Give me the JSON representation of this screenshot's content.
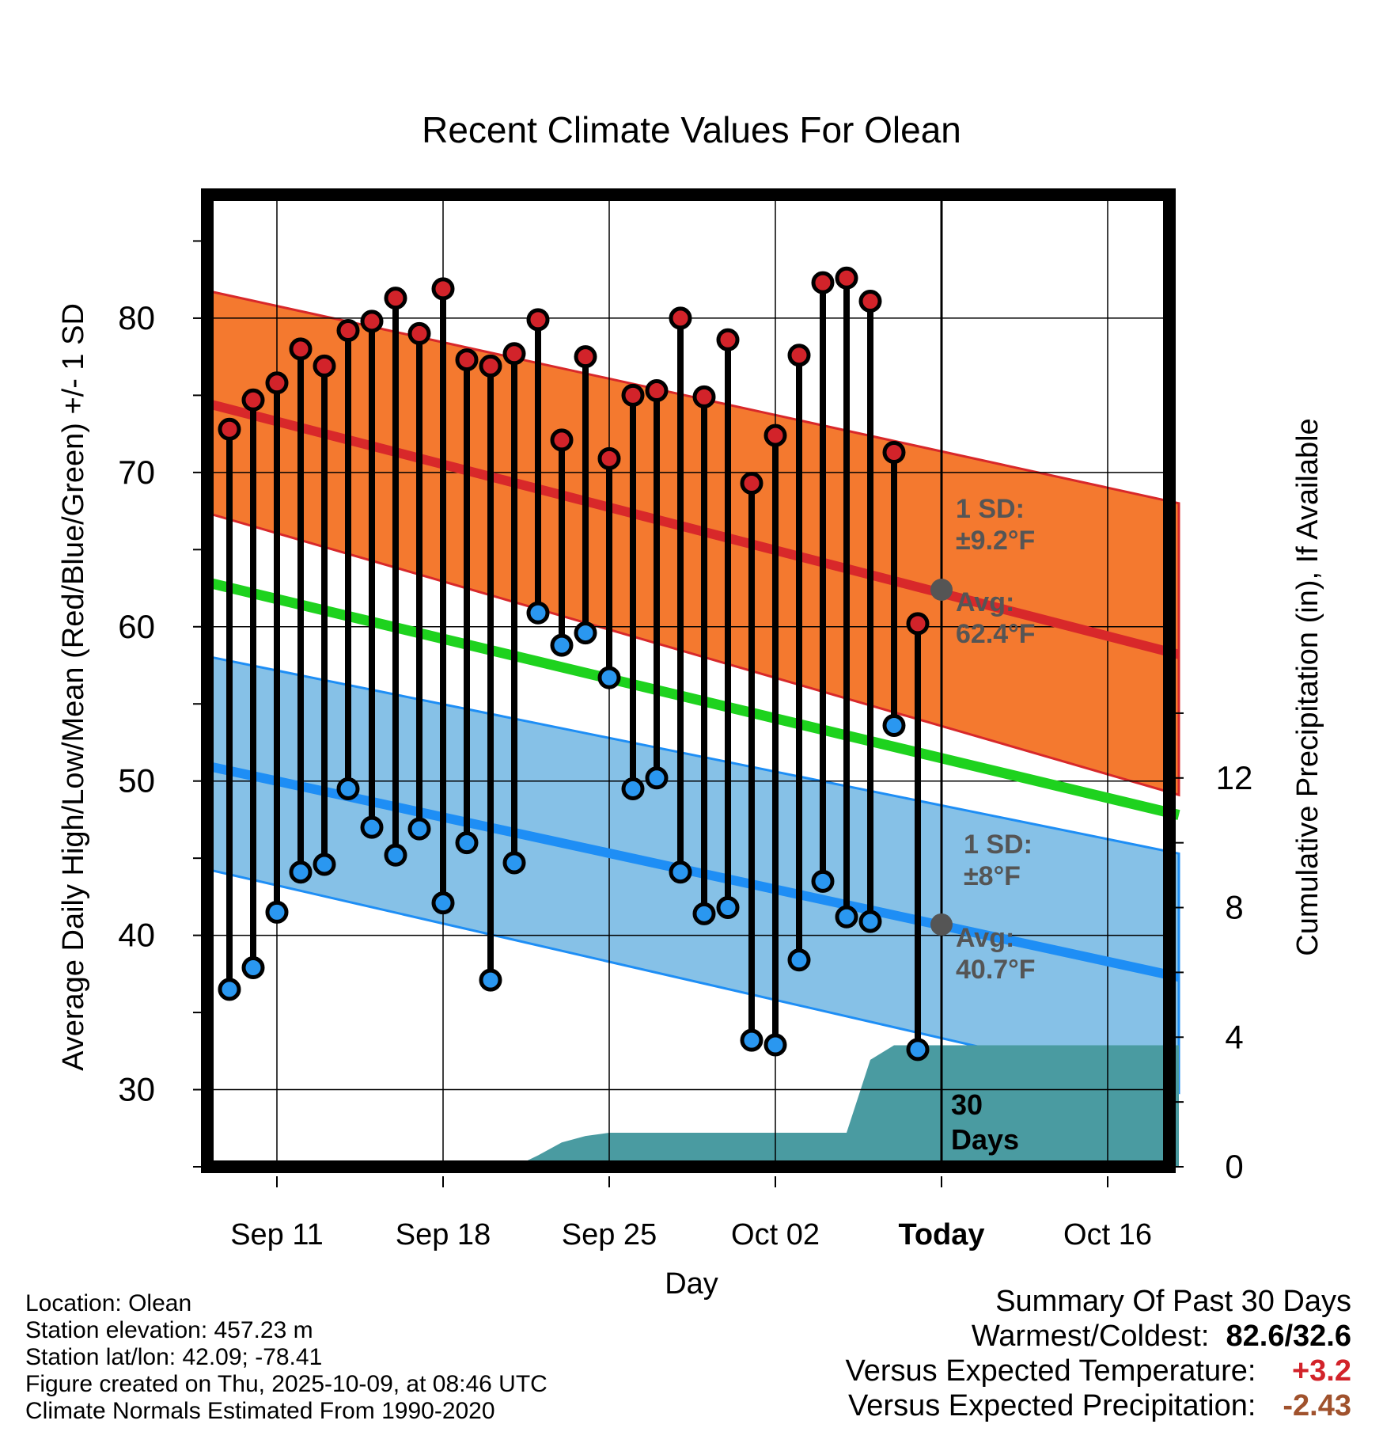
{
  "chart_data": {
    "type": "line",
    "title": "Recent Climate Values For Olean",
    "xlabel": "Day",
    "ylabel": "Average Daily High/Low/Mean (Red/Blue/Green) +/- 1 SD",
    "y2label": "Cumulative Precipitation (in), If Available",
    "ylim": [
      25,
      88
    ],
    "y2lim": [
      0,
      30
    ],
    "y_ticks": [
      30,
      40,
      50,
      60,
      70,
      80
    ],
    "y2_ticks": [
      0,
      4,
      8,
      12
    ],
    "x_tick_labels": [
      "Sep 11",
      "Sep 18",
      "Sep 25",
      "Oct 02",
      "Today",
      "Oct 16"
    ],
    "x_tick_days": [
      0,
      7,
      14,
      21,
      28,
      35
    ],
    "x_range": [
      -3,
      38
    ],
    "daily": {
      "day": [
        -2,
        -1,
        0,
        1,
        2,
        3,
        4,
        5,
        6,
        7,
        8,
        9,
        10,
        11,
        12,
        13,
        14,
        15,
        16,
        17,
        18,
        19,
        20,
        21,
        22,
        23,
        24,
        25,
        26,
        27
      ],
      "high": [
        72.8,
        74.7,
        75.8,
        78.0,
        76.9,
        79.2,
        79.8,
        81.3,
        79.0,
        81.9,
        77.3,
        76.9,
        77.7,
        79.9,
        72.1,
        77.5,
        70.9,
        75.0,
        75.3,
        80.0,
        74.9,
        78.6,
        69.3,
        72.4,
        77.6,
        82.3,
        82.6,
        81.1,
        71.3,
        60.2
      ],
      "low": [
        36.5,
        37.9,
        41.5,
        44.1,
        44.6,
        49.5,
        47.0,
        45.2,
        46.9,
        42.1,
        46.0,
        37.1,
        44.7,
        60.9,
        58.8,
        59.6,
        56.7,
        49.5,
        50.2,
        44.1,
        41.4,
        41.8,
        33.2,
        32.9,
        38.4,
        43.5,
        41.2,
        40.9,
        53.6,
        32.6
      ]
    },
    "normals": {
      "day": [
        -3,
        38
      ],
      "high_avg": [
        74.5,
        58.2
      ],
      "high_sd_upper": [
        81.8,
        68.0
      ],
      "high_sd_lower": [
        67.4,
        49.1
      ],
      "mean_avg": [
        62.9,
        47.8
      ],
      "low_avg": [
        51.0,
        37.3
      ],
      "low_sd_upper": [
        58.1,
        45.3
      ],
      "low_sd_lower": [
        44.3,
        29.8
      ]
    },
    "precipitation": {
      "day": [
        -3,
        10,
        11,
        12,
        13,
        14,
        15,
        16,
        17,
        18,
        19,
        20,
        21,
        22,
        23,
        24,
        25,
        26,
        27,
        38
      ],
      "cumulative_in": [
        0,
        0,
        0.35,
        0.75,
        0.95,
        1.05,
        1.05,
        1.05,
        1.05,
        1.05,
        1.05,
        1.05,
        1.05,
        1.05,
        1.05,
        1.05,
        3.3,
        3.75,
        3.75,
        3.75
      ]
    },
    "annotations": {
      "high_sd_label": "1 SD:",
      "high_sd_value": "±9.2°F",
      "high_avg_label": "Avg:",
      "high_avg_value": "62.4°F",
      "high_avg_marker": 62.4,
      "low_sd_label": "1 SD:",
      "low_sd_value": "±8°F",
      "low_avg_label": "Avg:",
      "low_avg_value": "40.7°F",
      "low_avg_marker": 40.7,
      "days_count": "30",
      "days_word": "Days"
    },
    "colors": {
      "high_band": "#F4792F",
      "high_line": "#D8282A",
      "low_band": "#86C1E7",
      "low_line": "#1E8EF5",
      "mean_line": "#1ED21E",
      "precip": "#4A9BA1",
      "high_dot": "#D2232A",
      "low_dot": "#2A97F0",
      "annotation": "#555555"
    }
  },
  "info": {
    "location": "Location: Olean",
    "elevation": "Station elevation: 457.23 m",
    "latlon": "Station lat/lon: 42.09; -78.41",
    "created": "Figure created on Thu, 2025-10-09, at 08:46 UTC",
    "normals": "Climate Normals Estimated From 1990-2020"
  },
  "summary": {
    "title": "Summary Of Past 30 Days",
    "warm_cold_label": "Warmest/Coldest:",
    "warm_cold_value": "82.6/32.6",
    "temp_label": "Versus Expected Temperature:",
    "temp_value": "+3.2",
    "temp_color": "#D2232A",
    "precip_label": "Versus Expected Precipitation:",
    "precip_value": "-2.43",
    "precip_color": "#A0522D"
  }
}
